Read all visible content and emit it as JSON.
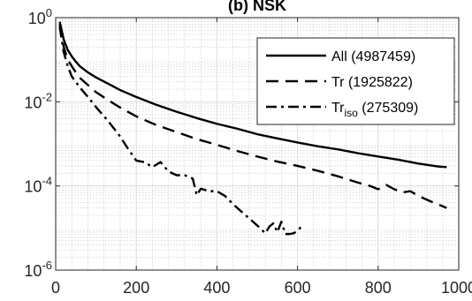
{
  "chart_data": {
    "type": "line",
    "title": "(b) NSK",
    "xlabel": "",
    "ylabel": "",
    "xlim": [
      0,
      1000
    ],
    "ylim": [
      1e-06,
      1
    ],
    "yscale": "log",
    "grid": true,
    "minor_grid": true,
    "legend_position": "top-right",
    "x_ticks": [
      0,
      200,
      400,
      600,
      800,
      1000
    ],
    "x_tick_labels": [
      "0",
      "200",
      "400",
      "600",
      "800",
      "1000"
    ],
    "y_ticks": [
      1,
      0.01,
      0.0001,
      1e-06
    ],
    "y_tick_bases": [
      "10",
      "10",
      "10",
      "10"
    ],
    "y_tick_exps": [
      "0",
      "-2",
      "-4",
      "-6"
    ],
    "series": [
      {
        "name": "All (4987459)",
        "style": "solid",
        "color": "#000000",
        "x": [
          10,
          20,
          30,
          40,
          50,
          60,
          80,
          100,
          130,
          160,
          200,
          250,
          300,
          350,
          400,
          450,
          500,
          550,
          600,
          650,
          700,
          750,
          800,
          850,
          900,
          950,
          970
        ],
        "y": [
          0.8,
          0.3,
          0.17,
          0.12,
          0.09,
          0.07,
          0.05,
          0.038,
          0.027,
          0.019,
          0.013,
          0.0085,
          0.0058,
          0.0041,
          0.003,
          0.0023,
          0.0017,
          0.00135,
          0.00108,
          0.00088,
          0.00074,
          0.0006,
          0.0005,
          0.00042,
          0.00034,
          0.00029,
          0.00028
        ]
      },
      {
        "name": "Tr (1925822)",
        "style": "dashed",
        "color": "#000000",
        "x": [
          10,
          20,
          30,
          40,
          50,
          60,
          80,
          100,
          130,
          160,
          200,
          250,
          300,
          350,
          400,
          450,
          500,
          550,
          600,
          650,
          700,
          750,
          780,
          800,
          820,
          840,
          860,
          880,
          900,
          930,
          960,
          970
        ],
        "y": [
          0.7,
          0.2,
          0.1,
          0.07,
          0.05,
          0.037,
          0.025,
          0.017,
          0.011,
          0.0073,
          0.0045,
          0.0028,
          0.0019,
          0.0013,
          0.00095,
          0.00068,
          0.0005,
          0.00038,
          0.0003,
          0.00023,
          0.00017,
          0.00012,
          0.0001,
          8.36e-05,
          0.000106,
          8.36e-05,
          7e-05,
          7.5e-05,
          5.8e-05,
          4.3e-05,
          3.3e-05,
          3e-05
        ]
      },
      {
        "name": "Tr_iso (275309)",
        "label_main": "Tr",
        "label_sub": "iso",
        "label_rest": " (275309)",
        "style": "dashdot",
        "color": "#000000",
        "x": [
          10,
          20,
          30,
          40,
          60,
          80,
          100,
          130,
          160,
          180,
          200,
          220,
          240,
          260,
          280,
          300,
          320,
          340,
          350,
          360,
          380,
          400,
          420,
          440,
          460,
          480,
          500,
          520,
          530,
          540,
          550,
          560,
          570,
          580,
          590,
          600,
          610
        ],
        "y": [
          0.6,
          0.15,
          0.07,
          0.04,
          0.022,
          0.013,
          0.0075,
          0.0035,
          0.0015,
          0.00075,
          0.0004,
          0.00037,
          0.00028,
          0.00037,
          0.00022,
          0.00018,
          0.00018,
          0.00015,
          6e-05,
          8.6e-05,
          7.5e-05,
          7.5e-05,
          5.8e-05,
          3.7e-05,
          2.5e-05,
          1.7e-05,
          1.15e-05,
          7.5e-06,
          1.08e-05,
          1.29e-05,
          8e-06,
          1.42e-05,
          7.2e-06,
          7.2e-06,
          7.5e-06,
          8.5e-06,
          1.1e-05
        ]
      }
    ]
  }
}
